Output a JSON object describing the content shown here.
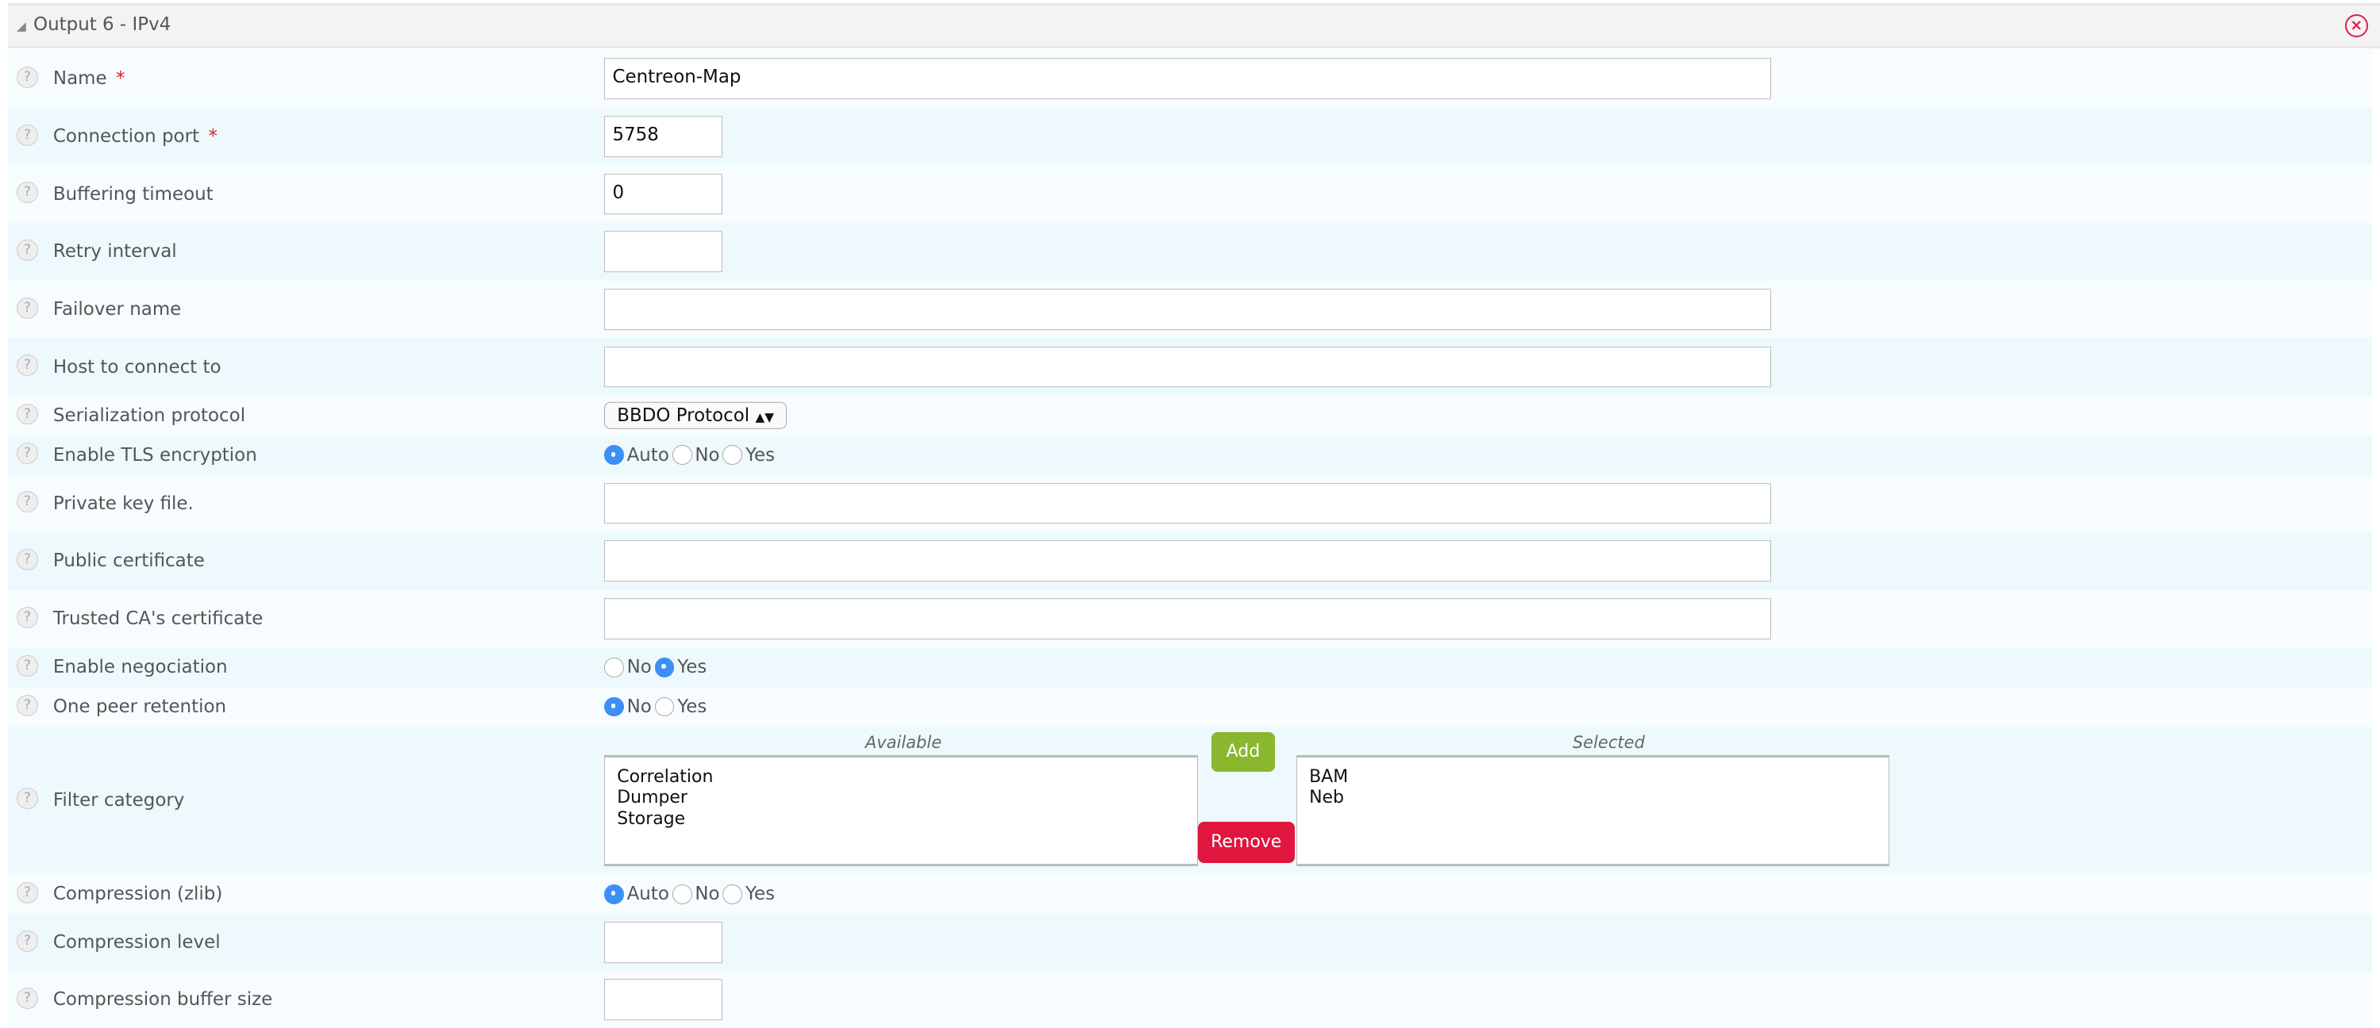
{
  "header": {
    "title": "Output 6 - IPv4",
    "collapse_icon": "triangle-down-icon",
    "close_icon": "close-circle-icon"
  },
  "colors": {
    "accent": "#3d8ff5",
    "add": "#8ab72d",
    "remove": "#e0163f",
    "close": "#e0204a"
  },
  "fields": {
    "name": {
      "label": "Name",
      "required": "*",
      "value": "Centreon-Map"
    },
    "connection_port": {
      "label": "Connection port",
      "required": "*",
      "value": "5758"
    },
    "buffering_timeout": {
      "label": "Buffering timeout",
      "value": "0"
    },
    "retry_interval": {
      "label": "Retry interval",
      "value": ""
    },
    "failover_name": {
      "label": "Failover name",
      "value": ""
    },
    "host": {
      "label": "Host to connect to",
      "value": ""
    },
    "serialization": {
      "label": "Serialization protocol",
      "value": "BBDO Protocol"
    },
    "tls": {
      "label": "Enable TLS encryption",
      "options": [
        "Auto",
        "No",
        "Yes"
      ],
      "selected": "Auto"
    },
    "private_key": {
      "label": "Private key file.",
      "value": ""
    },
    "public_cert": {
      "label": "Public certificate",
      "value": ""
    },
    "trusted_ca": {
      "label": "Trusted CA's certificate",
      "value": ""
    },
    "negociation": {
      "label": "Enable negociation",
      "options": [
        "No",
        "Yes"
      ],
      "selected": "Yes"
    },
    "peer_retention": {
      "label": "One peer retention",
      "options": [
        "No",
        "Yes"
      ],
      "selected": "No"
    },
    "filter": {
      "label": "Filter category",
      "available_label": "Available",
      "selected_label": "Selected",
      "available": [
        "Correlation",
        "Dumper",
        "Storage"
      ],
      "selected": [
        "BAM",
        "Neb"
      ],
      "add_label": "Add",
      "remove_label": "Remove"
    },
    "compression": {
      "label": "Compression (zlib)",
      "options": [
        "Auto",
        "No",
        "Yes"
      ],
      "selected": "Auto"
    },
    "compression_level": {
      "label": "Compression level",
      "value": ""
    },
    "compression_buffer": {
      "label": "Compression buffer size",
      "value": ""
    }
  }
}
